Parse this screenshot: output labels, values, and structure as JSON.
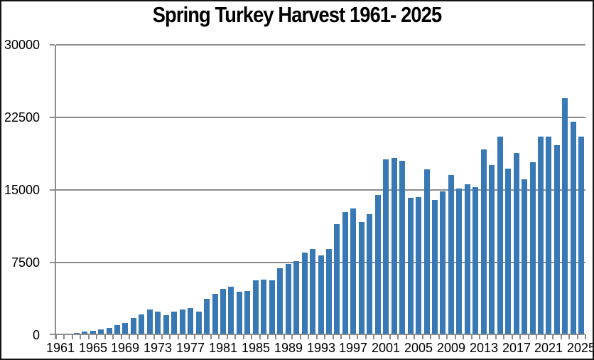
{
  "chart_data": {
    "type": "bar",
    "title": "Spring Turkey Harvest 1961- 2025",
    "xlabel": "",
    "ylabel": "",
    "ylim": [
      0,
      30000
    ],
    "y_ticks": [
      0,
      7500,
      15000,
      22500,
      30000
    ],
    "y_tick_labels": [
      "0",
      "7500",
      "15000",
      "22500",
      "30000"
    ],
    "x_tick_labels": [
      "1961",
      "1965",
      "1969",
      "1973",
      "1977",
      "1981",
      "1985",
      "1989",
      "1993",
      "1997",
      "2001",
      "2005",
      "2009",
      "2013",
      "2017",
      "2021",
      "2025"
    ],
    "grid": "horizontal",
    "legend": "none",
    "bar_color": "#3878b4",
    "gridline_color": "#8c8c8c",
    "x": [
      1961,
      1962,
      1963,
      1964,
      1965,
      1966,
      1967,
      1968,
      1969,
      1970,
      1971,
      1972,
      1973,
      1974,
      1975,
      1976,
      1977,
      1978,
      1979,
      1980,
      1981,
      1982,
      1983,
      1984,
      1985,
      1986,
      1987,
      1988,
      1989,
      1990,
      1991,
      1992,
      1993,
      1994,
      1995,
      1996,
      1997,
      1998,
      1999,
      2000,
      2001,
      2002,
      2003,
      2004,
      2005,
      2006,
      2007,
      2008,
      2009,
      2010,
      2011,
      2012,
      2013,
      2014,
      2015,
      2016,
      2017,
      2018,
      2019,
      2020,
      2021,
      2022,
      2023,
      2024,
      2025
    ],
    "values": [
      0,
      0,
      200,
      390,
      420,
      610,
      730,
      1060,
      1270,
      1750,
      2110,
      2650,
      2400,
      2030,
      2450,
      2650,
      2760,
      2450,
      3720,
      4290,
      4780,
      5020,
      4490,
      4540,
      5640,
      5740,
      5690,
      6940,
      7350,
      7650,
      8500,
      8920,
      8260,
      8870,
      11490,
      12750,
      13110,
      11660,
      12530,
      14500,
      18140,
      18330,
      17990,
      14170,
      14240,
      17130,
      13950,
      14880,
      16520,
      15120,
      15610,
      15300,
      19220,
      17580,
      20520,
      17200,
      18790,
      16100,
      17890,
      20520,
      20520,
      19660,
      24490,
      22050,
      20520
    ]
  }
}
